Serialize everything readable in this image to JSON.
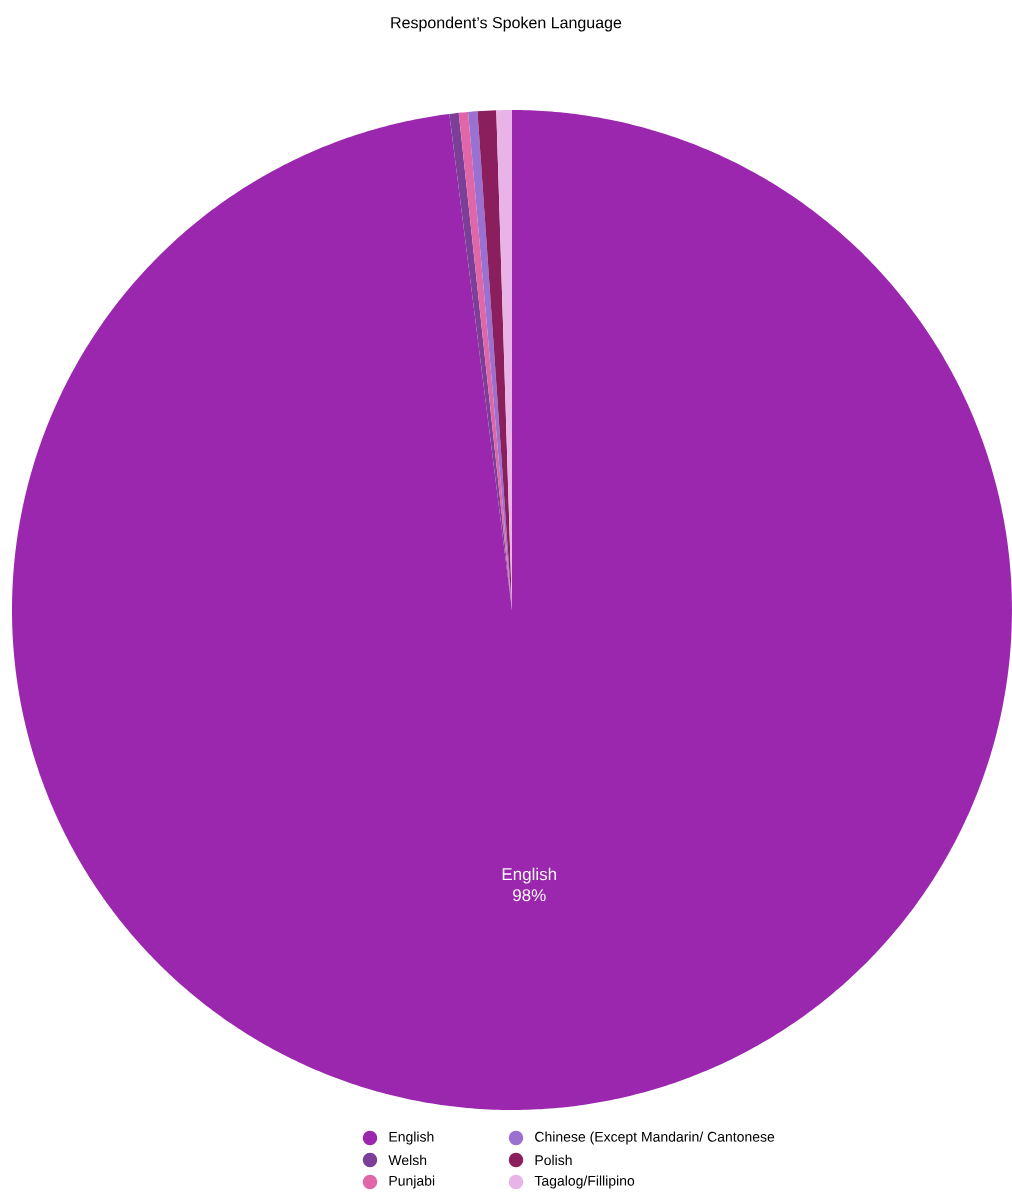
{
  "chart_data": {
    "type": "pie",
    "title": "Respondent’s Spoken Language",
    "categories": [
      "English",
      "Welsh",
      "Punjabi",
      "Chinese (Except Mandarin/ Cantonese",
      "Polish",
      "Tagalog/Fillipino"
    ],
    "values": [
      98,
      0.3,
      0.3,
      0.3,
      0.6,
      0.5
    ],
    "colors": [
      "#9b27af",
      "#7b3f97",
      "#e066a8",
      "#9a70d0",
      "#8b1f5e",
      "#e8b4e8"
    ],
    "value_labels": [
      "98%",
      null,
      null,
      null,
      null,
      null
    ],
    "legend": "bottom"
  }
}
